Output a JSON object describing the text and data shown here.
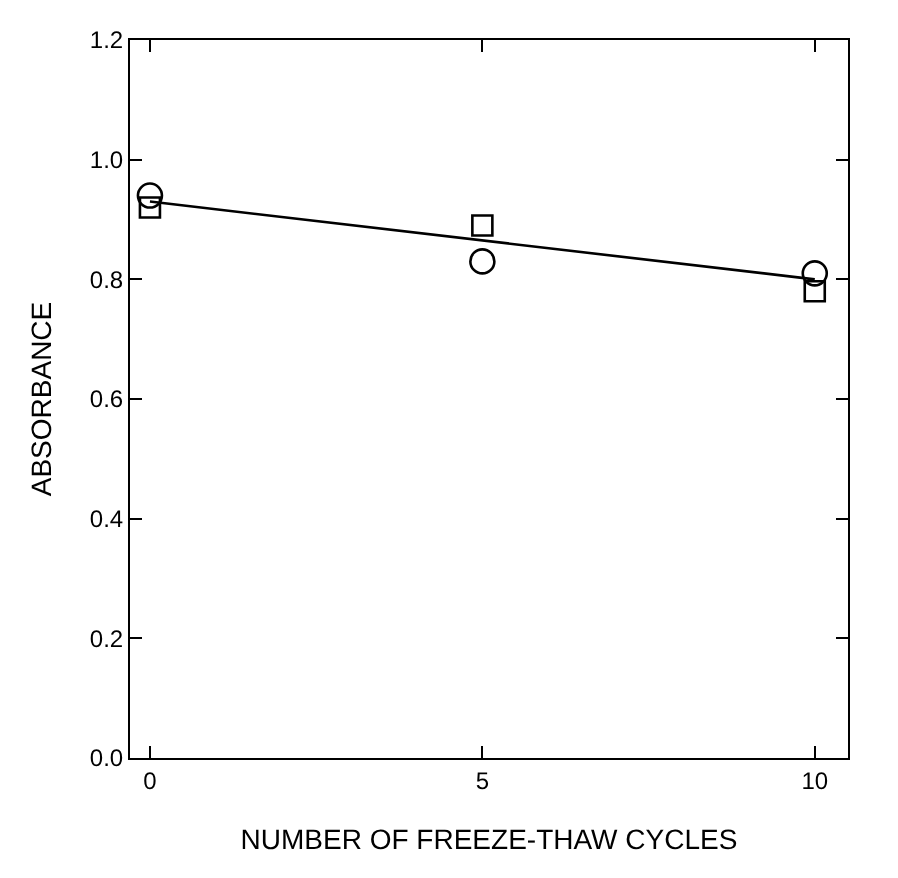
{
  "chart_data": {
    "type": "scatter",
    "xlabel": "NUMBER OF FREEZE-THAW CYCLES",
    "ylabel": "ABSORBANCE",
    "x": [
      0,
      5,
      10
    ],
    "series": [
      {
        "color": "#000000",
        "values": [
          0.94,
          0.83,
          0.81
        ],
        "marker": "circle"
      },
      {
        "color": "#000000",
        "values": [
          0.92,
          0.89,
          0.78
        ],
        "marker": "square"
      },
      {
        "type": "line",
        "color": "#000000",
        "x": [
          0,
          10
        ],
        "values": [
          0.93,
          0.8
        ]
      }
    ],
    "xlim": [
      -0.3,
      10.5
    ],
    "xticks": [
      0,
      5,
      10
    ],
    "ylim": [
      0,
      1.2
    ],
    "yticks": [
      {
        "value": 0,
        "label": "0.0"
      },
      0.2,
      0.4,
      0.6,
      0.8,
      {
        "value": 1,
        "label": "1.0"
      },
      1.2
    ]
  }
}
